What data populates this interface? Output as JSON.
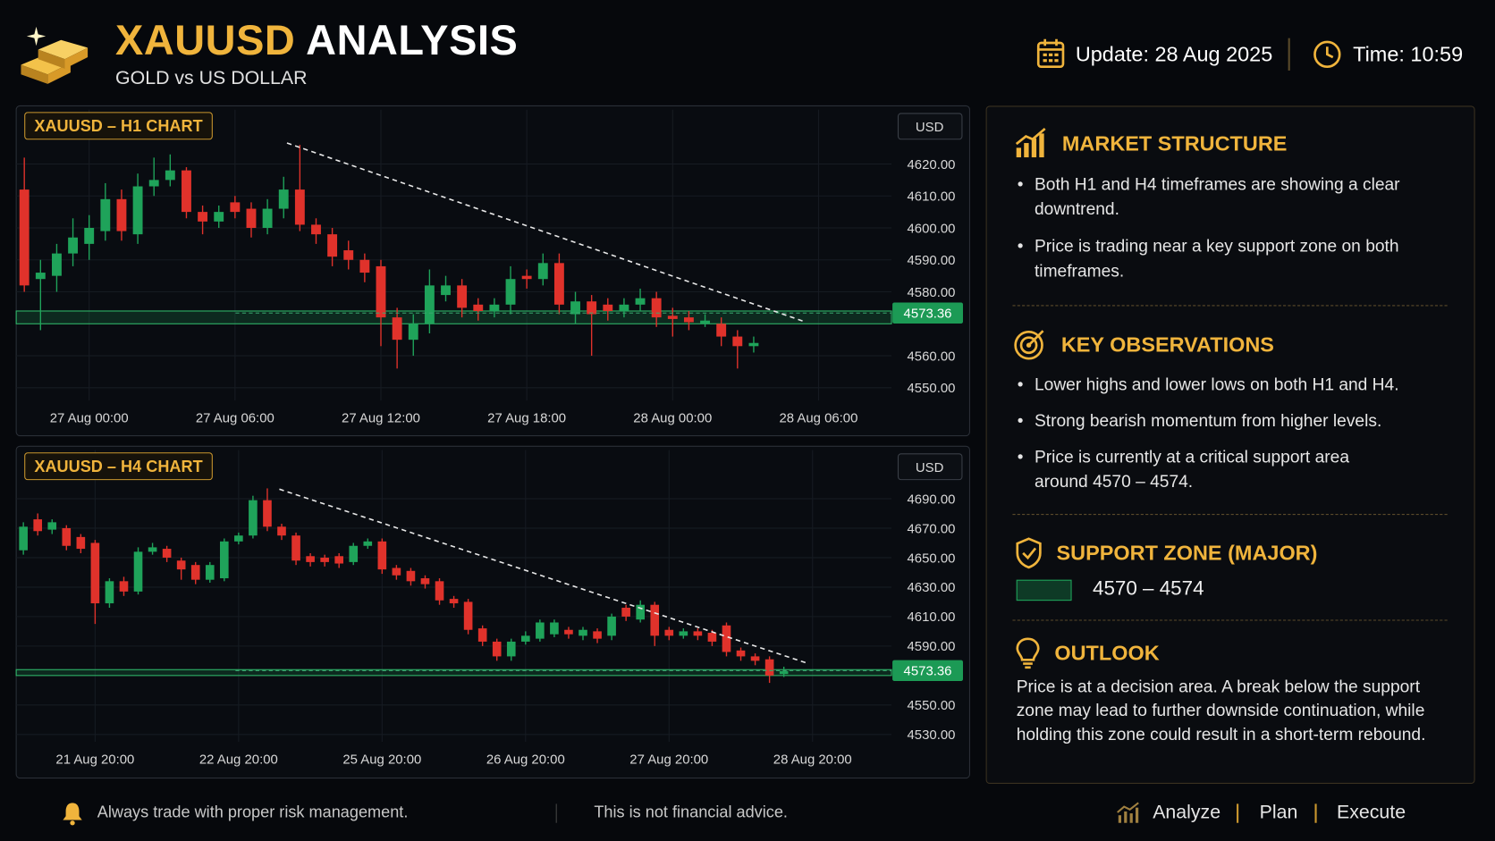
{
  "header": {
    "title_symbol": "XAUUSD",
    "title_rest": "ANALYSIS",
    "subtitle": "GOLD vs US DOLLAR",
    "update": "Update: 28 Aug 2025",
    "time": "Time: 10:59"
  },
  "chart_data": [
    {
      "type": "candlestick",
      "title": "XAUUSD – H1 CHART",
      "currency": "USD",
      "current_price": 4573.36,
      "support_zone": [
        4570,
        4574
      ],
      "ylim": [
        4546,
        4637
      ],
      "yticks": [
        {
          "value": 4550,
          "label": "4550.00"
        },
        {
          "value": 4560,
          "label": "4560.00"
        },
        {
          "value": 4580,
          "label": "4580.00"
        },
        {
          "value": 4590,
          "label": "4590.00"
        },
        {
          "value": 4600,
          "label": "4600.00"
        },
        {
          "value": 4610,
          "label": "4610.00"
        },
        {
          "value": 4620,
          "label": "4620.00"
        }
      ],
      "categories": [
        null,
        null,
        null,
        null,
        "27 Aug 00:00",
        null,
        null,
        null,
        null,
        null,
        null,
        null,
        null,
        "27 Aug 06:00",
        null,
        null,
        null,
        null,
        null,
        null,
        null,
        null,
        "27 Aug 12:00",
        null,
        null,
        null,
        null,
        null,
        null,
        null,
        null,
        "27 Aug 18:00",
        null,
        null,
        null,
        null,
        null,
        null,
        null,
        null,
        "28 Aug 00:00",
        null,
        null,
        null,
        null,
        null,
        null,
        null,
        null,
        "28 Aug 06:00",
        null,
        null,
        null,
        null
      ],
      "open": [
        4612,
        4584,
        4585,
        4592,
        4595,
        4599,
        4609,
        4598,
        4613,
        4615,
        4618,
        4605,
        4602,
        4608,
        4606,
        4600,
        4606,
        4612,
        4601,
        4598,
        4593,
        4590,
        4588,
        4572,
        4565,
        4570,
        4579,
        4582,
        4576,
        4574,
        4576,
        4585,
        4584,
        4589,
        4573,
        4577,
        4576,
        4574,
        4576,
        4578,
        4572.5,
        4572,
        4570,
        4570,
        4566,
        4563,
        null,
        null,
        null,
        null,
        null,
        null,
        null,
        null
      ],
      "high": [
        4622,
        4590,
        4595,
        4603,
        4604,
        4614,
        4612,
        4617,
        4622,
        4623,
        4619,
        4607,
        4607,
        4610,
        4608,
        4609,
        4616,
        4626,
        4603,
        4600,
        4596,
        4592,
        4590,
        4575,
        4573,
        4587,
        4585,
        4584,
        4578,
        4578,
        4588,
        4587,
        4592,
        4592,
        4580,
        4579,
        4578,
        4578,
        4581,
        4580,
        4575,
        4574,
        4573,
        4572,
        4568,
        4566,
        null,
        null,
        null,
        null,
        null,
        null,
        null,
        null
      ],
      "low": [
        4580,
        4568,
        4580,
        4588,
        4590,
        4596,
        4596,
        4595,
        4610,
        4613,
        4603,
        4598,
        4600,
        4603,
        4597,
        4598,
        4603,
        4599,
        4595,
        4588,
        4587,
        4583,
        4563,
        4556,
        4560,
        4567,
        4577,
        4572,
        4571,
        4572,
        4573,
        4581,
        4582,
        4573,
        4570,
        4560,
        4571,
        4572,
        4574,
        4569,
        4566,
        4568,
        4569,
        4563,
        4556,
        4561,
        null,
        null,
        null,
        null,
        null,
        null,
        null,
        null
      ],
      "close": [
        4582,
        4586,
        4592,
        4597,
        4600,
        4609,
        4599,
        4613,
        4615,
        4618,
        4605,
        4602,
        4605,
        4605,
        4600,
        4606,
        4612,
        4601,
        4598,
        4591,
        4590,
        4586,
        4572,
        4565,
        4570,
        4582,
        4582,
        4575,
        4574,
        4576,
        4584,
        4584,
        4589,
        4576,
        4577,
        4573,
        4574,
        4576,
        4578,
        4572,
        4571.5,
        4570.5,
        4571,
        4566,
        4563,
        4564,
        null,
        null,
        null,
        null,
        null,
        null,
        null,
        null
      ],
      "up_color": "#1fa35a",
      "down_color": "#e0322b"
    },
    {
      "type": "candlestick",
      "title": "XAUUSD – H4 CHART",
      "currency": "USD",
      "current_price": 4573.36,
      "support_zone": [
        4570,
        4574
      ],
      "ylim": [
        4525,
        4723
      ],
      "yticks": [
        {
          "value": 4530,
          "label": "4530.00"
        },
        {
          "value": 4550,
          "label": "4550.00"
        },
        {
          "value": 4590,
          "label": "4590.00"
        },
        {
          "value": 4610,
          "label": "4610.00"
        },
        {
          "value": 4630,
          "label": "4630.00"
        },
        {
          "value": 4650,
          "label": "4650.00"
        },
        {
          "value": 4670,
          "label": "4670.00"
        },
        {
          "value": 4690,
          "label": "4690.00"
        }
      ],
      "categories": [
        null,
        null,
        null,
        null,
        null,
        "21 Aug 20:00",
        null,
        null,
        null,
        null,
        null,
        null,
        null,
        null,
        null,
        "22 Aug 20:00",
        null,
        null,
        null,
        null,
        null,
        null,
        null,
        null,
        null,
        "25 Aug 20:00",
        null,
        null,
        null,
        null,
        null,
        null,
        null,
        null,
        null,
        "26 Aug 20:00",
        null,
        null,
        null,
        null,
        null,
        null,
        null,
        null,
        null,
        "27 Aug 20:00",
        null,
        null,
        null,
        null,
        null,
        null,
        null,
        null,
        null,
        "28 Aug 20:00",
        null,
        null,
        null,
        null,
        null
      ],
      "open": [
        4655,
        4676,
        4669,
        4670,
        4664,
        4660,
        4619,
        4634,
        4627,
        4654,
        4656,
        4648,
        4645,
        4635,
        4636,
        4661,
        4665,
        4689,
        4671,
        4665,
        4651,
        4650,
        4651,
        4647,
        4658,
        4661,
        4643,
        4641,
        4636,
        4634,
        4622,
        4620,
        4602,
        4593,
        4583,
        4593,
        4595,
        4598,
        4601,
        4597,
        4600,
        4597,
        4616,
        4608,
        4618,
        4601,
        4597,
        4600,
        4599,
        4604,
        4587,
        4583,
        4581,
        4571,
        null,
        null,
        null,
        null,
        null,
        null,
        null
      ],
      "high": [
        4674,
        4680,
        4676,
        4672,
        4666,
        4662,
        4636,
        4637,
        4657,
        4660,
        4658,
        4650,
        4647,
        4647,
        4663,
        4667,
        4692,
        4697,
        4673,
        4667,
        4653,
        4652,
        4653,
        4660,
        4663,
        4663,
        4645,
        4643,
        4638,
        4636,
        4624,
        4622,
        4604,
        4595,
        4595,
        4600,
        4608,
        4608,
        4603,
        4603,
        4602,
        4612,
        4618,
        4621,
        4620,
        4603,
        4602,
        4602,
        4601,
        4606,
        4589,
        4585,
        4583,
        4576,
        null,
        null,
        null,
        null,
        null,
        null,
        null
      ],
      "low": [
        4652,
        4665,
        4666,
        4655,
        4653,
        4605,
        4616,
        4624,
        4625,
        4652,
        4647,
        4635,
        4632,
        4633,
        4634,
        4659,
        4663,
        4668,
        4662,
        4645,
        4644,
        4644,
        4643,
        4645,
        4656,
        4639,
        4635,
        4631,
        4629,
        4618,
        4616,
        4598,
        4590,
        4580,
        4580,
        4591,
        4593,
        4596,
        4595,
        4594,
        4592,
        4594,
        4607,
        4606,
        4590,
        4594,
        4595,
        4594,
        4590,
        4583,
        4580,
        4577,
        4565,
        4569,
        null,
        null,
        null,
        null,
        null,
        null,
        null
      ],
      "close": [
        4671,
        4668,
        4674,
        4658,
        4656,
        4619,
        4634,
        4627,
        4654,
        4657,
        4650,
        4642,
        4635,
        4645,
        4661,
        4665,
        4689,
        4671,
        4665,
        4648,
        4647,
        4647,
        4646,
        4658,
        4661,
        4642,
        4638,
        4634,
        4632,
        4621,
        4619,
        4601,
        4593,
        4583,
        4593,
        4597,
        4606,
        4606,
        4598,
        4601,
        4595,
        4610,
        4610,
        4618,
        4597,
        4597,
        4600,
        4597,
        4593,
        4586,
        4583,
        4580,
        4570,
        4573,
        null,
        null,
        null,
        null,
        null,
        null,
        null
      ],
      "up_color": "#1fa35a",
      "down_color": "#e0322b"
    }
  ],
  "panel": {
    "sections": [
      {
        "title": "MARKET STRUCTURE",
        "items": [
          "Both H1 and H4 timeframes are showing a clear downtrend.",
          "Price is trading near a key support zone on both timeframes."
        ]
      },
      {
        "title": "KEY OBSERVATIONS",
        "items": [
          "Lower highs and lower lows on both H1 and H4.",
          "Strong bearish momentum from higher levels.",
          "Price is currently at a critical support area around 4570 – 4574."
        ]
      },
      {
        "title": "SUPPORT ZONE (MAJOR)",
        "range": "4570 – 4574"
      },
      {
        "title": "OUTLOOK",
        "text": "Price is at a decision area. A break below the support zone may lead to further downside continuation, while holding this zone could result in a short-term rebound."
      }
    ]
  },
  "footer": {
    "risk": "Always trade with proper risk management.",
    "advice": "This is not financial advice.",
    "steps": [
      "Analyze",
      "Plan",
      "Execute"
    ]
  }
}
